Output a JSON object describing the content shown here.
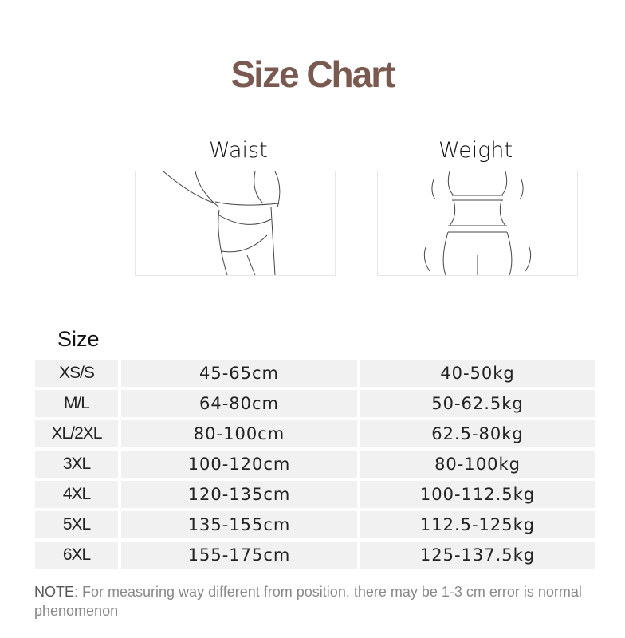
{
  "title": "Size Chart",
  "columns": {
    "waist": "Waist",
    "weight": "Weight",
    "size": "Size"
  },
  "rows": [
    {
      "size": "XS/S",
      "waist": "45-65cm",
      "weight": "40-50kg"
    },
    {
      "size": "M/L",
      "waist": "64-80cm",
      "weight": "50-62.5kg"
    },
    {
      "size": "XL/2XL",
      "waist": "80-100cm",
      "weight": "62.5-80kg"
    },
    {
      "size": "3XL",
      "waist": "100-120cm",
      "weight": "80-100kg"
    },
    {
      "size": "4XL",
      "waist": "120-135cm",
      "weight": "100-112.5kg"
    },
    {
      "size": "5XL",
      "waist": "135-155cm",
      "weight": "112.5-125kg"
    },
    {
      "size": "6XL",
      "waist": "155-175cm",
      "weight": "125-137.5kg"
    }
  ],
  "note": {
    "prefix": "NOTE",
    "text": ": For measuring way different from position, there may be 1-3 cm error is normal phenomenon"
  },
  "colors": {
    "title": "#7a5a50",
    "row_bg": "#f1f1f1"
  }
}
